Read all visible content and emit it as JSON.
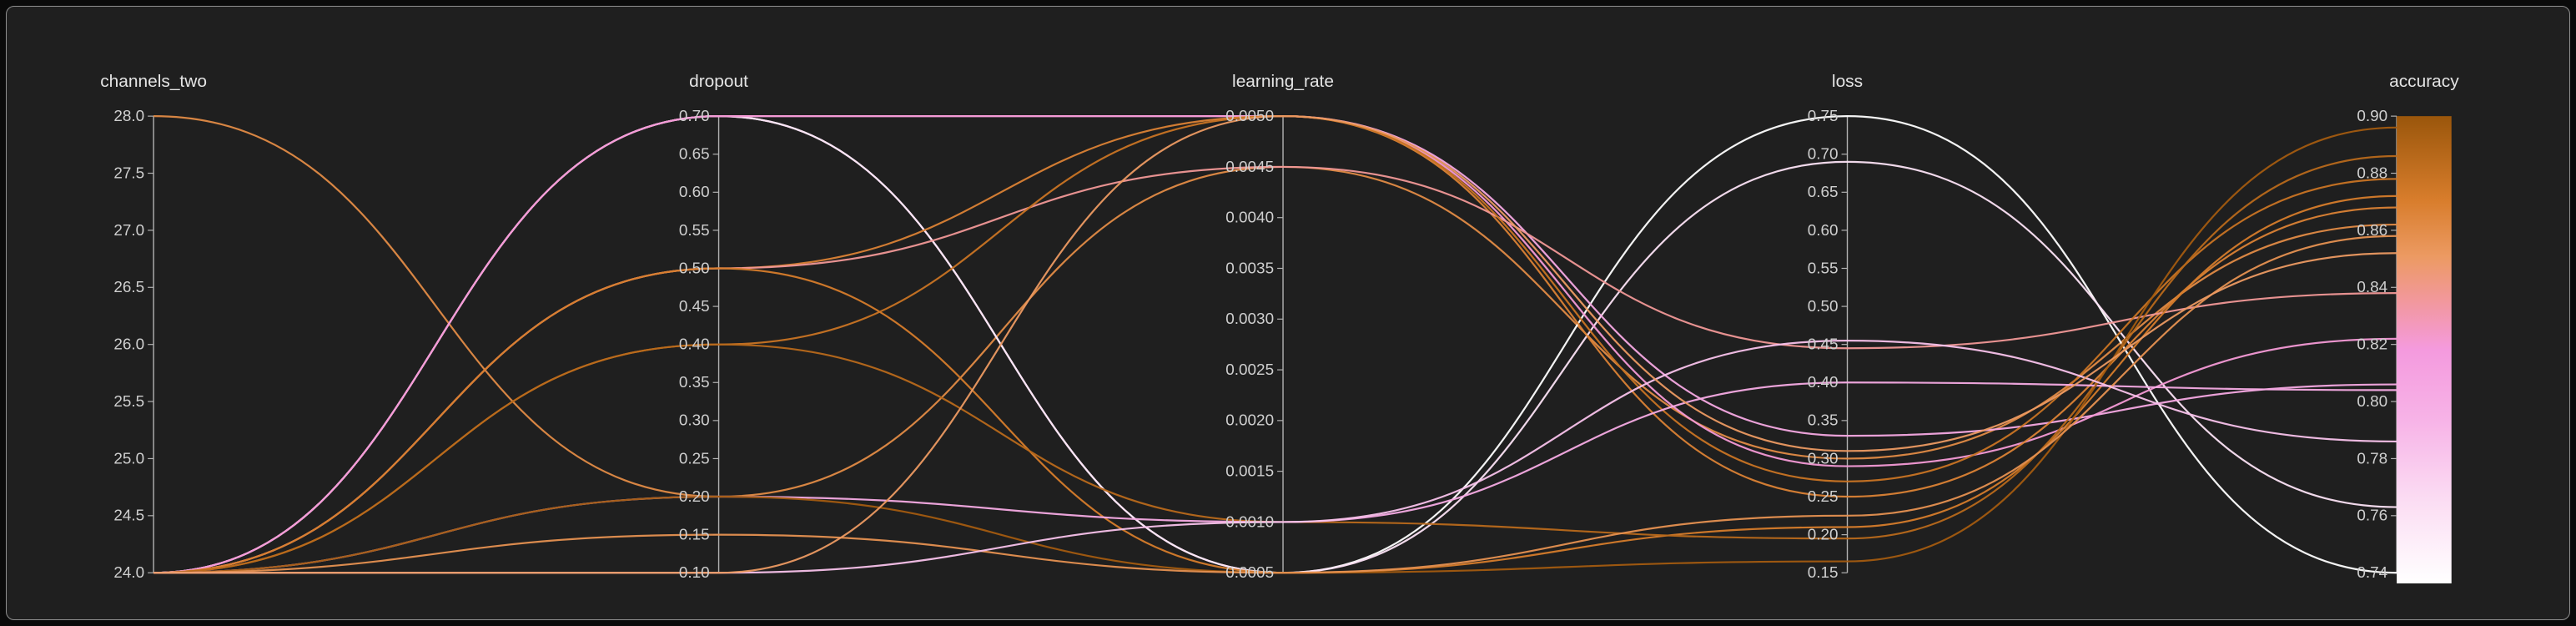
{
  "chart": {
    "background": "#1f1f1f",
    "panel_border": "#8f8f8f",
    "axis_line_color": "#b3b3b3",
    "tick_text_color": "#cfcfcf",
    "title_text_color": "#e4e4e4"
  },
  "chart_data": {
    "type": "parallel-coordinates",
    "color_by": "accuracy",
    "axes": [
      {
        "label": "channels_two",
        "min": 24,
        "max": 28,
        "tick_labels": [
          "28.0",
          "27.5",
          "27.0",
          "26.5",
          "26.0",
          "25.5",
          "25.0",
          "24.5",
          "24.0"
        ]
      },
      {
        "label": "dropout",
        "min": 0.1,
        "max": 0.7,
        "tick_labels": [
          "0.70",
          "0.65",
          "0.60",
          "0.55",
          "0.50",
          "0.45",
          "0.40",
          "0.35",
          "0.30",
          "0.25",
          "0.20",
          "0.15",
          "0.10"
        ]
      },
      {
        "label": "learning_rate",
        "min": 0.0005,
        "max": 0.005,
        "tick_labels": [
          "0.0050",
          "0.0045",
          "0.0040",
          "0.0035",
          "0.0030",
          "0.0025",
          "0.0020",
          "0.0015",
          "0.0010",
          "0.0005"
        ]
      },
      {
        "label": "loss",
        "min": 0.15,
        "max": 0.75,
        "tick_labels": [
          "0.75",
          "0.70",
          "0.65",
          "0.60",
          "0.55",
          "0.50",
          "0.45",
          "0.40",
          "0.35",
          "0.30",
          "0.25",
          "0.20",
          "0.15"
        ]
      },
      {
        "label": "accuracy",
        "min": 0.74,
        "max": 0.9,
        "tick_labels": [
          "0.90",
          "0.88",
          "0.86",
          "0.84",
          "0.82",
          "0.80",
          "0.78",
          "0.76",
          "0.74"
        ]
      }
    ],
    "colormap": [
      {
        "t": 0.0,
        "color": "#ffffff"
      },
      {
        "t": 0.18,
        "color": "#fbdcf3"
      },
      {
        "t": 0.35,
        "color": "#f7b3e7"
      },
      {
        "t": 0.5,
        "color": "#f49ade"
      },
      {
        "t": 0.6,
        "color": "#f2989f"
      },
      {
        "t": 0.7,
        "color": "#ec9a62"
      },
      {
        "t": 0.82,
        "color": "#d87d2c"
      },
      {
        "t": 1.0,
        "color": "#9a560b"
      }
    ],
    "runs": [
      {
        "channels_two": 28,
        "dropout": 0.2,
        "learning_rate": 0.0045,
        "loss": 0.3,
        "accuracy": 0.862
      },
      {
        "channels_two": 24,
        "dropout": 0.7,
        "learning_rate": 0.0005,
        "loss": 0.75,
        "accuracy": 0.74
      },
      {
        "channels_two": 24,
        "dropout": 0.7,
        "learning_rate": 0.0005,
        "loss": 0.69,
        "accuracy": 0.763
      },
      {
        "channels_two": 24,
        "dropout": 0.7,
        "learning_rate": 0.005,
        "loss": 0.33,
        "accuracy": 0.806
      },
      {
        "channels_two": 24,
        "dropout": 0.7,
        "learning_rate": 0.005,
        "loss": 0.29,
        "accuracy": 0.822
      },
      {
        "channels_two": 24,
        "dropout": 0.5,
        "learning_rate": 0.005,
        "loss": 0.25,
        "accuracy": 0.868
      },
      {
        "channels_two": 24,
        "dropout": 0.5,
        "learning_rate": 0.0045,
        "loss": 0.445,
        "accuracy": 0.838
      },
      {
        "channels_two": 24,
        "dropout": 0.5,
        "learning_rate": 0.0005,
        "loss": 0.21,
        "accuracy": 0.872
      },
      {
        "channels_two": 24,
        "dropout": 0.4,
        "learning_rate": 0.005,
        "loss": 0.27,
        "accuracy": 0.878
      },
      {
        "channels_two": 24,
        "dropout": 0.4,
        "learning_rate": 0.001,
        "loss": 0.195,
        "accuracy": 0.886
      },
      {
        "channels_two": 24,
        "dropout": 0.2,
        "learning_rate": 0.001,
        "loss": 0.4,
        "accuracy": 0.804
      },
      {
        "channels_two": 24,
        "dropout": 0.2,
        "learning_rate": 0.0005,
        "loss": 0.165,
        "accuracy": 0.896
      },
      {
        "channels_two": 24,
        "dropout": 0.15,
        "learning_rate": 0.0005,
        "loss": 0.225,
        "accuracy": 0.858
      },
      {
        "channels_two": 24,
        "dropout": 0.1,
        "learning_rate": 0.001,
        "loss": 0.455,
        "accuracy": 0.786
      },
      {
        "channels_two": 24,
        "dropout": 0.1,
        "learning_rate": 0.005,
        "loss": 0.31,
        "accuracy": 0.852
      }
    ]
  }
}
